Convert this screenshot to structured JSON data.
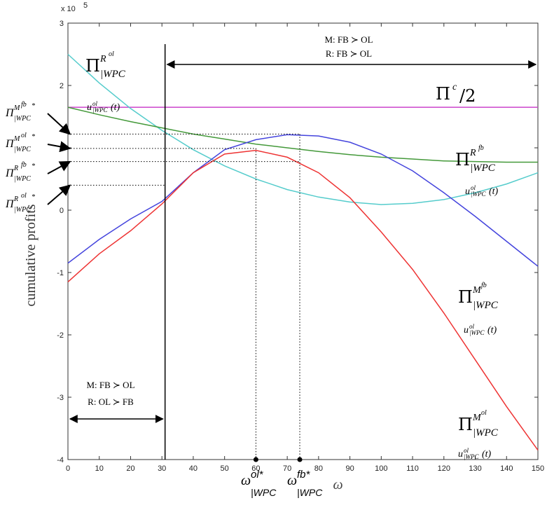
{
  "chart_data": {
    "type": "line",
    "xlabel": "ω",
    "ylabel": "cumulative profits",
    "exponent_label": "x 10",
    "exponent_power": "5",
    "xlim": [
      0,
      150
    ],
    "ylim": [
      -400000,
      300000
    ],
    "x_ticks": [
      "0",
      "10",
      "20",
      "30",
      "40",
      "50",
      "60",
      "70",
      "80",
      "90",
      "100",
      "110",
      "120",
      "130",
      "140",
      "150"
    ],
    "y_ticks": [
      "3",
      "2",
      "1",
      "0",
      "-1",
      "-2",
      "-3",
      "-4"
    ],
    "grid": false,
    "x": [
      0,
      10,
      20,
      30,
      40,
      50,
      60,
      70,
      80,
      90,
      100,
      110,
      120,
      130,
      140,
      150
    ],
    "series": [
      {
        "key": "pi_c_half",
        "color": "#cc44cc",
        "values": [
          165000,
          165000,
          165000,
          165000,
          165000,
          165000,
          165000,
          165000,
          165000,
          165000,
          165000,
          165000,
          165000,
          165000,
          165000,
          165000
        ]
      },
      {
        "key": "pi_R_ol",
        "color": "#55cccc",
        "values": [
          250000,
          204000,
          163000,
          128000,
          97000,
          71000,
          50000,
          33000,
          21000,
          13000,
          9000,
          11000,
          17000,
          28000,
          42000,
          60000
        ]
      },
      {
        "key": "pi_R_fb",
        "color": "#44993a",
        "values": [
          165000,
          153000,
          142000,
          132000,
          122000,
          114000,
          106000,
          100000,
          94000,
          89000,
          85000,
          82000,
          79000,
          78000,
          77000,
          77000
        ]
      },
      {
        "key": "pi_M_fb",
        "color": "#4444dd",
        "values": [
          -85000,
          -47000,
          -14000,
          14000,
          60000,
          97000,
          113000,
          121000,
          119000,
          109000,
          90000,
          63000,
          28000,
          -10000,
          -50000,
          -90000
        ]
      },
      {
        "key": "pi_M_ol",
        "color": "#ee3333",
        "values": [
          -115000,
          -70000,
          -33000,
          10000,
          60000,
          90000,
          96000,
          85000,
          60000,
          20000,
          -35000,
          -95000,
          -165000,
          -240000,
          -315000,
          -385000
        ]
      }
    ],
    "vertical_line_x": 31,
    "dotted_x": [
      60,
      74
    ],
    "dotted_levels": [
      122000,
      99000,
      78000,
      40000
    ],
    "region_right": {
      "line1": "M: FB ≻ OL",
      "line2": "R: FB ≻ OL"
    },
    "region_left": {
      "line1": "M: FB ≻ OL",
      "line2": "R: OL ≻ FB"
    },
    "curve_labels": {
      "pi_R_ol": {
        "pi": "Π",
        "sup": "R",
        "supsup": "ol",
        "sub": "|WPC"
      },
      "pi_c_half": {
        "text": "Π",
        "sup": "c",
        "after": "/2"
      },
      "pi_R_fb": {
        "pi": "Π",
        "sup": "R",
        "supsup": "fb",
        "sub": "|WPC"
      },
      "pi_M_fb": {
        "pi": "Π",
        "sup": "M",
        "supsup": "fb",
        "sub": "|WPC"
      },
      "pi_M_ol": {
        "pi": "Π",
        "sup": "M",
        "supsup": "ol",
        "sub": "|WPC"
      }
    },
    "control_label": {
      "u": "u",
      "sup": "ol",
      "sub": "|WPC",
      "arg": "(t)"
    },
    "optimum_labels": [
      {
        "pi": "Π",
        "sup": "M",
        "supsup": "fb",
        "star": "*",
        "sub": "|WPC"
      },
      {
        "pi": "Π",
        "sup": "M",
        "supsup": "ol",
        "star": "*",
        "sub": "|WPC"
      },
      {
        "pi": "Π",
        "sup": "R",
        "supsup": "fb",
        "star": "*",
        "sub": "|WPC"
      },
      {
        "pi": "Π",
        "sup": "R",
        "supsup": "ol",
        "star": "*",
        "sub": "|WPC"
      }
    ],
    "omega_labels": [
      {
        "omega": "ω",
        "sup": "ol*",
        "sub": "|WPC"
      },
      {
        "omega": "ω",
        "sup": "fb*",
        "sub": "|WPC"
      }
    ]
  }
}
